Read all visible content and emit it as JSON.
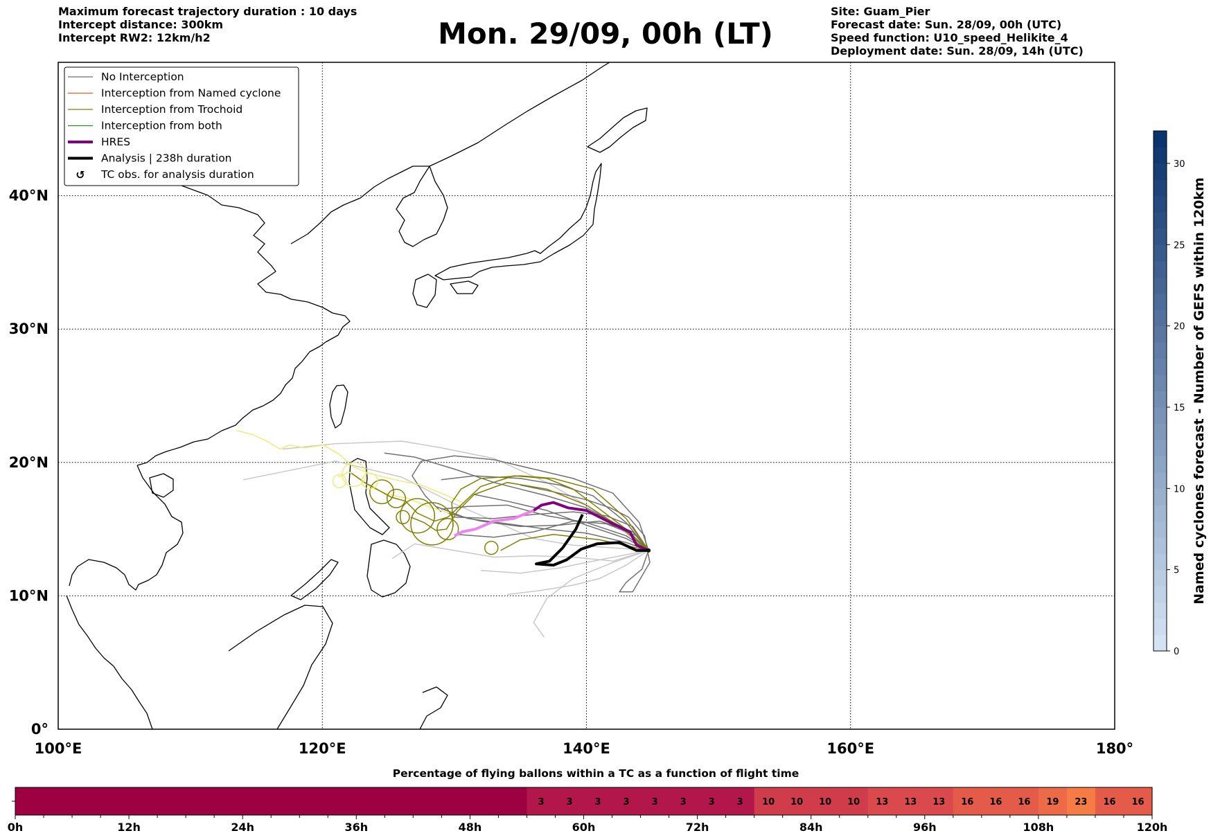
{
  "header": {
    "left_lines": [
      "Maximum forecast trajectory duration : 10 days",
      "Intercept distance: 300km",
      "Intercept RW2: 12km/h2"
    ],
    "title": "Mon. 29/09, 00h (LT)",
    "right_lines": [
      "Site: Guam_Pier",
      "Forecast date: Sun. 28/09, 00h (UTC)",
      "Speed function: U10_speed_Helikite_4",
      "Deployment date: Sun. 28/09, 14h (UTC)"
    ]
  },
  "map": {
    "extent": {
      "lon_min": 100,
      "lon_max": 180,
      "lat_min": 0,
      "lat_max": 50
    },
    "lon_ticks": [
      {
        "value": 100,
        "label": "100°E"
      },
      {
        "value": 120,
        "label": "120°E"
      },
      {
        "value": 140,
        "label": "140°E"
      },
      {
        "value": 160,
        "label": "160°E"
      },
      {
        "value": 180,
        "label": "180°"
      }
    ],
    "lat_ticks": [
      {
        "value": 0,
        "label": "0°"
      },
      {
        "value": 10,
        "label": "10°N"
      },
      {
        "value": 20,
        "label": "20°N"
      },
      {
        "value": 30,
        "label": "30°N"
      },
      {
        "value": 40,
        "label": "40°N"
      }
    ],
    "launch_site": {
      "lon": 144.7,
      "lat": 13.4
    },
    "hres_track": [
      [
        144.7,
        13.4
      ],
      [
        143.8,
        13.8
      ],
      [
        143.3,
        14.8
      ],
      [
        142.0,
        15.4
      ],
      [
        140.0,
        16.4
      ],
      [
        138.6,
        16.6
      ],
      [
        137.5,
        17.0
      ],
      [
        136.6,
        16.8
      ],
      [
        136.0,
        16.4
      ]
    ],
    "hres_track_late": [
      [
        136.0,
        16.4
      ],
      [
        134.5,
        15.8
      ],
      [
        133.0,
        15.6
      ],
      [
        131.6,
        15.0
      ],
      [
        130.6,
        14.8
      ],
      [
        130.0,
        14.5
      ]
    ],
    "analysis_track": [
      [
        144.7,
        13.4
      ],
      [
        143.8,
        13.4
      ],
      [
        142.5,
        14.0
      ],
      [
        140.8,
        13.9
      ],
      [
        139.6,
        13.5
      ],
      [
        138.5,
        12.7
      ],
      [
        137.5,
        12.3
      ],
      [
        136.2,
        12.4
      ],
      [
        137.2,
        12.6
      ],
      [
        138.2,
        13.6
      ],
      [
        139.2,
        15.0
      ],
      [
        139.7,
        16.1
      ]
    ],
    "gray_tracks": [
      [
        [
          144.7,
          13.4
        ],
        [
          143,
          14.5
        ],
        [
          140,
          15.5
        ],
        [
          137,
          16
        ],
        [
          134,
          16.8
        ],
        [
          131,
          16.7
        ],
        [
          129,
          16.5
        ]
      ],
      [
        [
          144.7,
          13.4
        ],
        [
          143,
          15
        ],
        [
          140,
          16.6
        ],
        [
          137,
          17.5
        ],
        [
          133,
          18.5
        ],
        [
          130,
          19.5
        ],
        [
          127,
          20.4
        ],
        [
          124.7,
          20.7
        ]
      ],
      [
        [
          144.7,
          13.4
        ],
        [
          144,
          15.5
        ],
        [
          142,
          17.7
        ],
        [
          139,
          18.8
        ],
        [
          136,
          19.5
        ],
        [
          133,
          20.2
        ],
        [
          130,
          20.5
        ],
        [
          127.5,
          20.1
        ],
        [
          126.8,
          19.0
        ],
        [
          127.8,
          17.5
        ],
        [
          129,
          16.3
        ]
      ],
      [
        [
          144.7,
          13.4
        ],
        [
          143.5,
          14.8
        ],
        [
          141,
          15.6
        ],
        [
          138,
          15.3
        ],
        [
          135,
          15.2
        ],
        [
          132,
          15.6
        ],
        [
          129.5,
          16.2
        ]
      ],
      [
        [
          144.7,
          13.4
        ],
        [
          143,
          14
        ],
        [
          140,
          14.7
        ],
        [
          137,
          15
        ],
        [
          134,
          15.4
        ],
        [
          131,
          15.8
        ],
        [
          128.6,
          16.7
        ]
      ],
      [
        [
          144.7,
          13.4
        ],
        [
          144.2,
          12.0
        ],
        [
          143,
          11.0
        ],
        [
          142.5,
          10.3
        ],
        [
          143.5,
          10.3
        ],
        [
          144.8,
          12.5
        ],
        [
          144.4,
          14.5
        ],
        [
          143.2,
          15.9
        ],
        [
          141.8,
          16.6
        ],
        [
          140,
          17.2
        ],
        [
          137.5,
          17.8
        ],
        [
          135,
          18.3
        ]
      ],
      [
        [
          144.7,
          13.4
        ],
        [
          143,
          15.5
        ],
        [
          140.5,
          17.5
        ],
        [
          138,
          18.3
        ],
        [
          135,
          18.8
        ],
        [
          131.5,
          19.0
        ],
        [
          129,
          18.7
        ]
      ],
      [
        [
          144.7,
          13.4
        ],
        [
          143,
          14.3
        ],
        [
          140,
          15.3
        ],
        [
          137,
          16.4
        ],
        [
          134,
          17.1
        ],
        [
          131.5,
          17.6
        ]
      ],
      [
        [
          144.7,
          13.4
        ],
        [
          143.8,
          14.5
        ],
        [
          141.5,
          15.4
        ],
        [
          139,
          15.6
        ],
        [
          136,
          14.8
        ],
        [
          133,
          14.4
        ],
        [
          130.2,
          14.6
        ]
      ],
      [
        [
          144.7,
          13.4
        ],
        [
          143.5,
          15.2
        ],
        [
          141.5,
          16.0
        ],
        [
          139,
          16.3
        ],
        [
          136,
          16.1
        ],
        [
          133,
          15.8
        ],
        [
          130,
          15.9
        ]
      ]
    ],
    "lightgray_tracks": [
      [
        [
          144.7,
          13.4
        ],
        [
          143,
          12.3
        ],
        [
          141,
          11.3
        ],
        [
          139,
          10.8
        ],
        [
          136.5,
          10.4
        ],
        [
          134,
          10.1
        ]
      ],
      [
        [
          144.7,
          13.4
        ],
        [
          142,
          12.6
        ],
        [
          139,
          12.9
        ],
        [
          136,
          13.0
        ],
        [
          133,
          12.9
        ],
        [
          130,
          13.4
        ],
        [
          127,
          13.9
        ],
        [
          125.3,
          12.8
        ]
      ],
      [
        [
          144.7,
          13.4
        ],
        [
          142,
          13.6
        ],
        [
          139,
          13.8
        ],
        [
          136,
          14.3
        ],
        [
          133,
          15.6
        ],
        [
          130,
          16.9
        ],
        [
          126,
          18.9
        ],
        [
          121,
          20.1
        ],
        [
          117,
          19.3
        ],
        [
          114,
          18.7
        ]
      ],
      [
        [
          144.7,
          13.4
        ],
        [
          142,
          12.5
        ],
        [
          139,
          11.3
        ],
        [
          137,
          9.8
        ],
        [
          136,
          8.0
        ],
        [
          136.8,
          6.9
        ]
      ],
      [
        [
          144.7,
          13.4
        ],
        [
          141,
          12.7
        ],
        [
          138,
          12.1
        ],
        [
          135,
          11.7
        ],
        [
          132,
          11.9
        ]
      ],
      [
        [
          144.7,
          13.4
        ],
        [
          143,
          14.7
        ],
        [
          140,
          16.8
        ],
        [
          137,
          18.5
        ],
        [
          133,
          20.3
        ],
        [
          129,
          21.1
        ],
        [
          126,
          21.6
        ],
        [
          121,
          21.4
        ],
        [
          117,
          21.0
        ]
      ]
    ],
    "olive_tracks": [
      [
        [
          144.7,
          13.4
        ],
        [
          143,
          15
        ],
        [
          141,
          16.5
        ],
        [
          139,
          18
        ],
        [
          137,
          18.8
        ],
        [
          134.5,
          19.0
        ],
        [
          132,
          18.2
        ],
        [
          130.5,
          16.8
        ],
        [
          129.5,
          15.9
        ],
        [
          128.5,
          15.6
        ],
        [
          127.2,
          16.2
        ],
        [
          126.3,
          17.1
        ],
        [
          125.2,
          17.4
        ],
        [
          124.3,
          17.9
        ],
        [
          123.2,
          18.5
        ],
        [
          122.2,
          19.2
        ]
      ],
      [
        [
          144.7,
          13.4
        ],
        [
          142.5,
          15.2
        ],
        [
          140,
          16.8
        ],
        [
          137,
          18.0
        ],
        [
          134,
          18.5
        ],
        [
          131.5,
          17.6
        ],
        [
          130.2,
          16.3
        ],
        [
          129.4,
          15.0
        ],
        [
          128.6,
          14.9
        ],
        [
          127.7,
          15.5
        ],
        [
          126.7,
          15.9
        ]
      ],
      [
        [
          144.7,
          13.4
        ],
        [
          143,
          15.8
        ],
        [
          140.5,
          18.0
        ],
        [
          137.5,
          18.8
        ],
        [
          135,
          19.0
        ],
        [
          132,
          18.8
        ],
        [
          130.5,
          18.0
        ],
        [
          129.8,
          17.0
        ],
        [
          129.9,
          15.2
        ]
      ],
      [
        [
          144.7,
          13.4
        ],
        [
          141,
          14.2
        ],
        [
          137.5,
          14.6
        ],
        [
          135,
          14.2
        ],
        [
          133.5,
          13.4
        ]
      ]
    ],
    "yellow_tracks": [
      [
        [
          129.6,
          16.2
        ],
        [
          128,
          16.7
        ],
        [
          126.5,
          17.3
        ],
        [
          125,
          17.6
        ],
        [
          124,
          18.0
        ],
        [
          123,
          18.6
        ],
        [
          122,
          19.3
        ],
        [
          121.2,
          18.9
        ]
      ],
      [
        [
          130.6,
          17.0
        ],
        [
          129,
          17.7
        ],
        [
          127.5,
          18.3
        ],
        [
          125.5,
          18.7
        ],
        [
          123.5,
          19.2
        ],
        [
          122.3,
          19.7
        ],
        [
          121.3,
          20.6
        ],
        [
          120.1,
          21.3
        ],
        [
          118.7,
          21.1
        ],
        [
          117.5,
          21.3
        ],
        [
          116.8,
          21.0
        ],
        [
          115.8,
          21.6
        ],
        [
          114.7,
          22.1
        ],
        [
          113.5,
          22.4
        ]
      ]
    ],
    "loops": [
      {
        "lon": 124.5,
        "lat": 17.8,
        "r": 0.9,
        "color": "olive"
      },
      {
        "lon": 125.6,
        "lat": 17.3,
        "r": 0.7,
        "color": "olive"
      },
      {
        "lon": 127.2,
        "lat": 16.0,
        "r": 1.3,
        "color": "olive"
      },
      {
        "lon": 128.3,
        "lat": 15.4,
        "r": 1.6,
        "color": "olive"
      },
      {
        "lon": 129.5,
        "lat": 15.0,
        "r": 0.8,
        "color": "olive"
      },
      {
        "lon": 126.1,
        "lat": 15.9,
        "r": 0.5,
        "color": "olive"
      },
      {
        "lon": 132.8,
        "lat": 13.6,
        "r": 0.5,
        "color": "olive"
      },
      {
        "lon": 122.4,
        "lat": 19.1,
        "r": 0.9,
        "color": "yellow"
      },
      {
        "lon": 123.6,
        "lat": 18.6,
        "r": 0.6,
        "color": "yellow"
      },
      {
        "lon": 121.3,
        "lat": 18.6,
        "r": 0.5,
        "color": "yellow"
      }
    ]
  },
  "legend": {
    "items": [
      {
        "label": "No Interception",
        "color": "#6e6e6e",
        "width": 1.2,
        "kind": "line"
      },
      {
        "label": "Interception from Named cyclone",
        "color": "#e8582a",
        "width": 1.2,
        "kind": "line"
      },
      {
        "label": "Interception from Trochoid",
        "color": "#808000",
        "width": 1.2,
        "kind": "line"
      },
      {
        "label": "Interception from both",
        "color": "#2a8a2a",
        "width": 1.2,
        "kind": "line"
      },
      {
        "label": "HRES",
        "color": "#800080",
        "width": 4,
        "kind": "line"
      },
      {
        "label": "Analysis | 238h duration",
        "color": "#000000",
        "width": 4,
        "kind": "line"
      },
      {
        "label": "TC obs. for analysis duration",
        "color": "#000000",
        "width": 0,
        "kind": "symbol",
        "symbol": "cyclone-symbol-icon"
      }
    ]
  },
  "colorbar": {
    "label": "Named cyclones forecast - Number of GEFS within 120km",
    "ticks": [
      0,
      5,
      10,
      15,
      20,
      25,
      30
    ],
    "min": 0,
    "max": 32,
    "color_low": "#d7e6f6",
    "color_high": "#08306b"
  },
  "timeline": {
    "title": "Percentage of flying ballons within a TC as a function of flight time",
    "max_hours": 120,
    "step_hours": 3,
    "tick_labels": [
      "0h",
      "12h",
      "24h",
      "36h",
      "48h",
      "60h",
      "72h",
      "84h",
      "96h",
      "108h",
      "120h"
    ],
    "cells": [
      0,
      0,
      0,
      0,
      0,
      0,
      0,
      0,
      0,
      0,
      0,
      0,
      0,
      0,
      0,
      0,
      0,
      0,
      3,
      3,
      3,
      3,
      3,
      3,
      3,
      3,
      10,
      10,
      10,
      10,
      13,
      13,
      13,
      16,
      16,
      16,
      19,
      23,
      16,
      16
    ]
  }
}
